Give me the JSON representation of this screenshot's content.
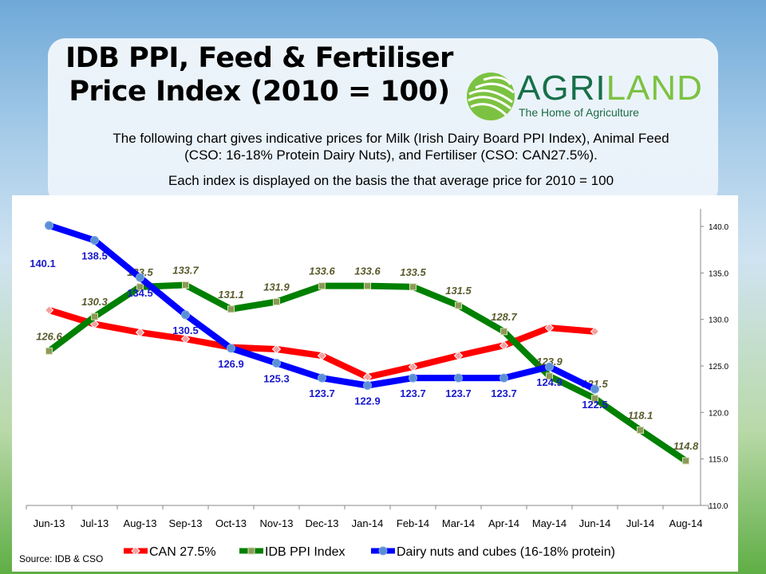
{
  "header": {
    "title_line1": "IDB PPI, Feed & Fertiliser",
    "title_line2": "Price Index (2010 = 100)",
    "logo_text_a": "AGRI",
    "logo_text_b": "LAND",
    "logo_tagline": "The Home of Agriculture",
    "description_line1": "The following chart gives indicative prices for Milk (Irish Dairy Board PPI Index), Animal Feed",
    "description_line2": "(CSO: 16-18% Protein Dairy Nuts), and Fertiliser (CSO: CAN27.5%).",
    "description_line3": "Each index is displayed on the basis the that average price for 2010 = 100"
  },
  "source": "Source: IDB & CSO",
  "chart_data": {
    "type": "line",
    "title": "IDB PPI, Feed & Fertiliser Price Index (2010 = 100)",
    "categories": [
      "Jun-13",
      "Jul-13",
      "Aug-13",
      "Sep-13",
      "Oct-13",
      "Nov-13",
      "Dec-13",
      "Jan-14",
      "Feb-14",
      "Mar-14",
      "Apr-14",
      "May-14",
      "Jun-14",
      "Jul-14",
      "Aug-14"
    ],
    "ylim": [
      110,
      140
    ],
    "yticks": [
      "110.0",
      "115.0",
      "120.0",
      "125.0",
      "130.0",
      "135.0",
      "140.0"
    ],
    "ytick_values": [
      110,
      115,
      120,
      125,
      130,
      135,
      140
    ],
    "yaxis_side": "right",
    "legend_position": "bottom",
    "series": [
      {
        "name": "CAN 27.5%",
        "color": "#ff0000",
        "marker": "diamond",
        "labeled": false,
        "values": [
          131.0,
          129.5,
          128.6,
          127.9,
          127.0,
          126.8,
          126.1,
          123.8,
          124.9,
          126.1,
          127.2,
          129.1,
          128.7,
          null,
          null
        ]
      },
      {
        "name": "IDB PPI Index",
        "color": "#008000",
        "marker": "square",
        "labeled": true,
        "label_color": "#5b5b2e",
        "values": [
          126.6,
          130.3,
          133.5,
          133.7,
          131.1,
          131.9,
          133.6,
          133.6,
          133.5,
          131.5,
          128.7,
          123.9,
          121.5,
          118.1,
          114.8
        ]
      },
      {
        "name": "Dairy nuts and cubes (16-18% protein)",
        "color": "#0000ff",
        "marker": "circle",
        "labeled": true,
        "label_color": "#1a1acc",
        "values": [
          140.1,
          138.5,
          134.5,
          130.5,
          126.9,
          125.3,
          123.7,
          122.9,
          123.7,
          123.7,
          123.7,
          124.9,
          122.5,
          null,
          null
        ]
      }
    ]
  }
}
